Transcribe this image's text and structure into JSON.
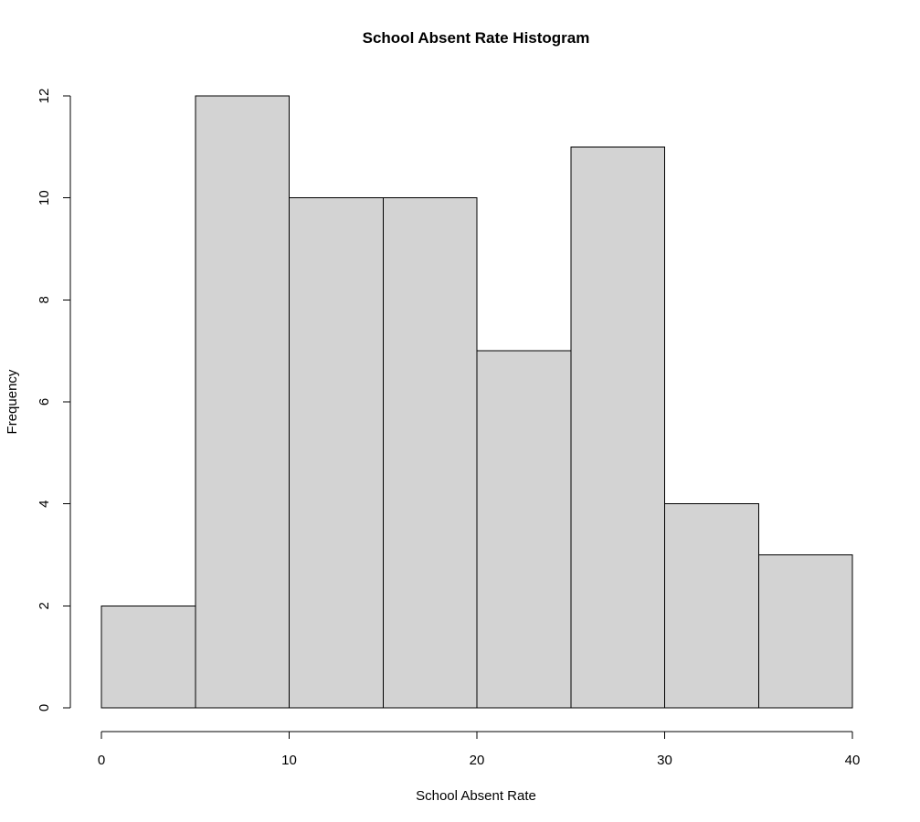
{
  "chart_data": {
    "type": "bar",
    "subtype": "histogram",
    "title": "School Absent Rate Histogram",
    "xlabel": "School Absent Rate",
    "ylabel": "Frequency",
    "bins": [
      [
        0,
        5
      ],
      [
        5,
        10
      ],
      [
        10,
        15
      ],
      [
        15,
        20
      ],
      [
        20,
        25
      ],
      [
        25,
        30
      ],
      [
        30,
        35
      ],
      [
        35,
        40
      ]
    ],
    "values": [
      2,
      12,
      10,
      10,
      7,
      11,
      4,
      3
    ],
    "xlim": [
      0,
      40
    ],
    "ylim": [
      0,
      12
    ],
    "xticks": [
      0,
      10,
      20,
      30,
      40
    ],
    "yticks": [
      0,
      2,
      4,
      6,
      8,
      10,
      12
    ],
    "grid": false,
    "legend": "none",
    "colors": {
      "bar_fill": "#d3d3d3",
      "bar_stroke": "#000000"
    }
  }
}
